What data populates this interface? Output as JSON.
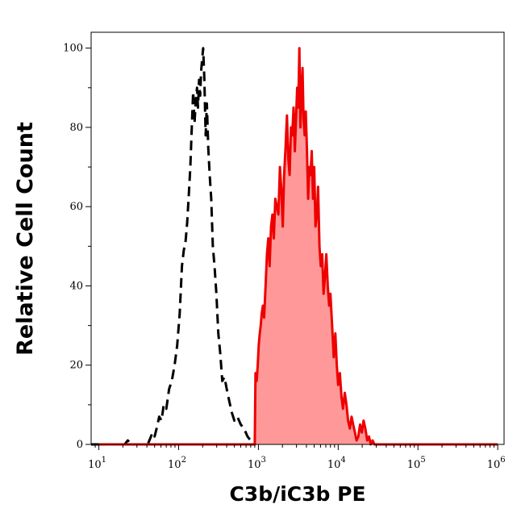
{
  "chart_data": {
    "type": "area",
    "xlabel": "C3b/iC3b PE",
    "ylabel": "Relative Cell Count",
    "xscale": "log",
    "xlim": [
      8,
      1200000
    ],
    "ylim": [
      0,
      104
    ],
    "x_ticks": [
      {
        "value": 10,
        "base": "10",
        "exp": "1"
      },
      {
        "value": 100,
        "base": "10",
        "exp": "2"
      },
      {
        "value": 1000,
        "base": "10",
        "exp": "3"
      },
      {
        "value": 10000,
        "base": "10",
        "exp": "4"
      },
      {
        "value": 100000,
        "base": "10",
        "exp": "5"
      },
      {
        "value": 1000000,
        "base": "10",
        "exp": "6"
      }
    ],
    "y_ticks": [
      {
        "value": 0,
        "label": "0"
      },
      {
        "value": 20,
        "label": "20"
      },
      {
        "value": 40,
        "label": "40"
      },
      {
        "value": 60,
        "label": "60"
      },
      {
        "value": 80,
        "label": "80"
      },
      {
        "value": 100,
        "label": "100"
      }
    ],
    "grid": false,
    "legend": "none",
    "series": [
      {
        "style": "dashed",
        "color": "#000000",
        "fill": "none",
        "x": [
          8,
          18,
          21,
          23,
          26,
          30,
          34,
          38,
          41,
          43,
          45,
          47,
          50,
          53,
          57,
          61,
          65,
          70,
          76,
          82,
          89,
          96,
          103,
          110,
          116,
          122,
          128,
          134,
          140,
          146,
          152,
          158,
          164,
          170,
          175,
          180,
          186,
          191,
          197,
          203,
          210,
          218,
          226,
          235,
          245,
          256,
          268,
          282,
          297,
          314,
          332,
          352,
          375,
          400,
          430,
          465,
          500,
          545,
          600,
          660,
          730,
          800
        ],
        "y": [
          0,
          0,
          0,
          1,
          0,
          0,
          0,
          0,
          0,
          1,
          2,
          3,
          2,
          4,
          7,
          6,
          10,
          9,
          14,
          16,
          20,
          25,
          33,
          45,
          49,
          51,
          56,
          63,
          70,
          80,
          89,
          81,
          87,
          90,
          85,
          92,
          88,
          94,
          97,
          100,
          92,
          78,
          86,
          75,
          68,
          62,
          50,
          45,
          38,
          28,
          23,
          16,
          17,
          14,
          11,
          8,
          6,
          7,
          5,
          4,
          2,
          1
        ]
      },
      {
        "style": "solid",
        "color": "#ee0000",
        "fill": "#ff9999",
        "x": [
          10,
          100,
          500,
          900,
          920,
          950,
          980,
          1010,
          1040,
          1070,
          1100,
          1140,
          1180,
          1230,
          1280,
          1330,
          1380,
          1440,
          1500,
          1560,
          1630,
          1700,
          1780,
          1860,
          1940,
          2020,
          2100,
          2190,
          2280,
          2370,
          2460,
          2560,
          2660,
          2760,
          2860,
          2960,
          3060,
          3160,
          3260,
          3360,
          3460,
          3570,
          3680,
          3800,
          3920,
          4050,
          4200,
          4350,
          4500,
          4660,
          4830,
          5000,
          5200,
          5400,
          5600,
          5820,
          6050,
          6300,
          6550,
          6800,
          7100,
          7400,
          7700,
          8000,
          8400,
          8800,
          9200,
          9600,
          10000,
          10500,
          11000,
          11500,
          12100,
          12700,
          13300,
          14000,
          14700,
          15400,
          16200,
          17000,
          17900,
          18800,
          19800,
          20800,
          21900,
          23100,
          24300,
          25600,
          27000,
          28500,
          30000,
          40000,
          60000,
          100000,
          200000,
          500000,
          1000000
        ],
        "y": [
          0,
          0,
          0,
          0,
          18,
          16,
          20,
          25,
          28,
          30,
          33,
          35,
          32,
          40,
          48,
          52,
          45,
          55,
          58,
          52,
          62,
          60,
          58,
          70,
          64,
          55,
          68,
          75,
          83,
          72,
          68,
          80,
          78,
          85,
          74,
          82,
          90,
          85,
          100,
          80,
          88,
          95,
          82,
          78,
          84,
          75,
          62,
          70,
          68,
          74,
          62,
          70,
          55,
          58,
          65,
          50,
          45,
          48,
          38,
          42,
          48,
          40,
          35,
          38,
          30,
          22,
          28,
          20,
          15,
          18,
          12,
          9,
          13,
          10,
          6,
          4,
          7,
          5,
          3,
          1,
          2,
          5,
          3,
          6,
          4,
          1,
          2,
          0,
          1,
          0,
          0,
          0,
          0,
          0,
          0,
          0,
          0
        ]
      }
    ]
  }
}
